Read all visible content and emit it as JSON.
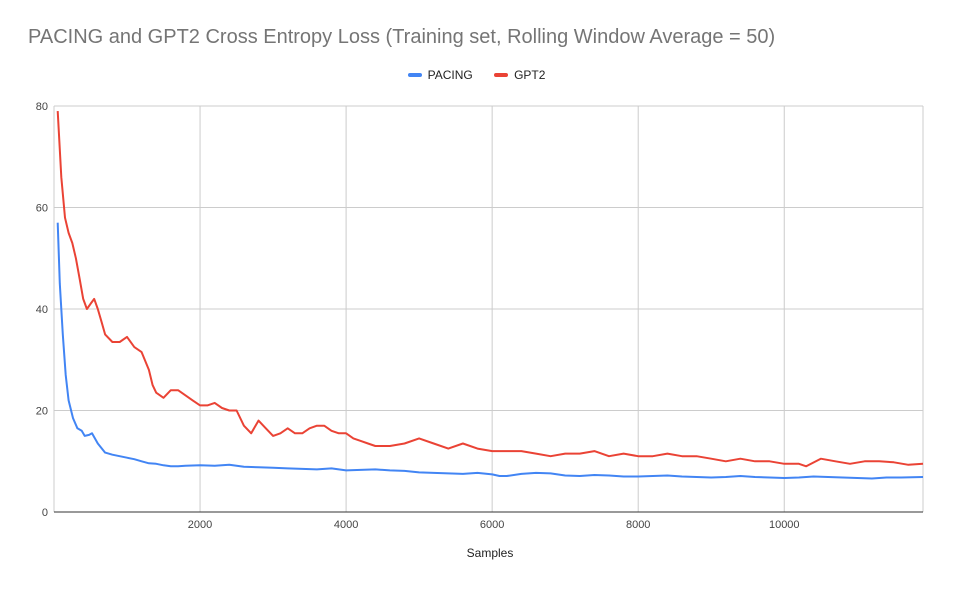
{
  "chart_data": {
    "type": "line",
    "title": "PACING and GPT2 Cross Entropy Loss (Training set, Rolling Window Average = 50)",
    "xlabel": "Samples",
    "ylabel": "",
    "xlim": [
      0,
      11900
    ],
    "ylim": [
      0,
      80
    ],
    "xticks": [
      2000,
      4000,
      6000,
      8000,
      10000
    ],
    "xtick_labels": [
      "2000",
      "4000",
      "6000",
      "8000",
      "10000"
    ],
    "yticks": [
      0,
      20,
      40,
      60,
      80
    ],
    "ytick_labels": [
      "0",
      "20",
      "40",
      "60",
      "80"
    ],
    "grid": true,
    "legend_position": "top",
    "series": [
      {
        "name": "PACING",
        "color": "#4285f4",
        "points": [
          [
            50,
            57
          ],
          [
            80,
            45
          ],
          [
            120,
            35
          ],
          [
            160,
            27
          ],
          [
            200,
            22
          ],
          [
            260,
            18.5
          ],
          [
            320,
            16.5
          ],
          [
            380,
            16
          ],
          [
            420,
            15
          ],
          [
            480,
            15.2
          ],
          [
            520,
            15.5
          ],
          [
            600,
            13.5
          ],
          [
            700,
            11.7
          ],
          [
            800,
            11.3
          ],
          [
            900,
            11
          ],
          [
            1000,
            10.7
          ],
          [
            1100,
            10.4
          ],
          [
            1200,
            10
          ],
          [
            1300,
            9.6
          ],
          [
            1400,
            9.5
          ],
          [
            1500,
            9.2
          ],
          [
            1600,
            9
          ],
          [
            1700,
            9
          ],
          [
            1800,
            9.1
          ],
          [
            2000,
            9.2
          ],
          [
            2200,
            9.1
          ],
          [
            2400,
            9.3
          ],
          [
            2600,
            8.9
          ],
          [
            2800,
            8.8
          ],
          [
            3000,
            8.7
          ],
          [
            3200,
            8.6
          ],
          [
            3400,
            8.5
          ],
          [
            3600,
            8.4
          ],
          [
            3800,
            8.6
          ],
          [
            4000,
            8.2
          ],
          [
            4200,
            8.3
          ],
          [
            4400,
            8.4
          ],
          [
            4600,
            8.2
          ],
          [
            4800,
            8.1
          ],
          [
            5000,
            7.8
          ],
          [
            5200,
            7.7
          ],
          [
            5400,
            7.6
          ],
          [
            5600,
            7.5
          ],
          [
            5800,
            7.7
          ],
          [
            6000,
            7.4
          ],
          [
            6100,
            7.1
          ],
          [
            6200,
            7.1
          ],
          [
            6400,
            7.5
          ],
          [
            6600,
            7.7
          ],
          [
            6800,
            7.6
          ],
          [
            7000,
            7.2
          ],
          [
            7200,
            7.1
          ],
          [
            7400,
            7.3
          ],
          [
            7600,
            7.2
          ],
          [
            7800,
            7
          ],
          [
            8000,
            7
          ],
          [
            8200,
            7.1
          ],
          [
            8400,
            7.2
          ],
          [
            8600,
            7
          ],
          [
            8800,
            6.9
          ],
          [
            9000,
            6.8
          ],
          [
            9200,
            6.9
          ],
          [
            9400,
            7.1
          ],
          [
            9600,
            6.9
          ],
          [
            9800,
            6.8
          ],
          [
            10000,
            6.7
          ],
          [
            10200,
            6.8
          ],
          [
            10400,
            7
          ],
          [
            10600,
            6.9
          ],
          [
            10800,
            6.8
          ],
          [
            11000,
            6.7
          ],
          [
            11200,
            6.6
          ],
          [
            11400,
            6.8
          ],
          [
            11600,
            6.8
          ],
          [
            11900,
            6.9
          ]
        ]
      },
      {
        "name": "GPT2",
        "color": "#ea4335",
        "points": [
          [
            50,
            79
          ],
          [
            100,
            66
          ],
          [
            150,
            58
          ],
          [
            200,
            55
          ],
          [
            250,
            53
          ],
          [
            300,
            50
          ],
          [
            350,
            46
          ],
          [
            400,
            42
          ],
          [
            450,
            40
          ],
          [
            500,
            41
          ],
          [
            550,
            42
          ],
          [
            600,
            40
          ],
          [
            650,
            37.5
          ],
          [
            700,
            35
          ],
          [
            800,
            33.5
          ],
          [
            900,
            33.5
          ],
          [
            1000,
            34.5
          ],
          [
            1100,
            32.5
          ],
          [
            1200,
            31.5
          ],
          [
            1300,
            28
          ],
          [
            1350,
            25
          ],
          [
            1400,
            23.5
          ],
          [
            1500,
            22.5
          ],
          [
            1600,
            24
          ],
          [
            1700,
            24
          ],
          [
            1800,
            23
          ],
          [
            1900,
            22
          ],
          [
            2000,
            21
          ],
          [
            2100,
            21
          ],
          [
            2200,
            21.5
          ],
          [
            2300,
            20.5
          ],
          [
            2400,
            20
          ],
          [
            2500,
            20
          ],
          [
            2600,
            17
          ],
          [
            2700,
            15.5
          ],
          [
            2800,
            18
          ],
          [
            2900,
            16.5
          ],
          [
            3000,
            15
          ],
          [
            3100,
            15.5
          ],
          [
            3200,
            16.5
          ],
          [
            3300,
            15.5
          ],
          [
            3400,
            15.5
          ],
          [
            3500,
            16.5
          ],
          [
            3600,
            17
          ],
          [
            3700,
            17
          ],
          [
            3800,
            16
          ],
          [
            3900,
            15.5
          ],
          [
            4000,
            15.5
          ],
          [
            4100,
            14.5
          ],
          [
            4200,
            14
          ],
          [
            4300,
            13.5
          ],
          [
            4400,
            13
          ],
          [
            4600,
            13
          ],
          [
            4800,
            13.5
          ],
          [
            5000,
            14.5
          ],
          [
            5200,
            13.5
          ],
          [
            5400,
            12.5
          ],
          [
            5600,
            13.5
          ],
          [
            5800,
            12.5
          ],
          [
            6000,
            12
          ],
          [
            6200,
            12
          ],
          [
            6400,
            12
          ],
          [
            6600,
            11.5
          ],
          [
            6800,
            11
          ],
          [
            7000,
            11.5
          ],
          [
            7200,
            11.5
          ],
          [
            7400,
            12
          ],
          [
            7600,
            11
          ],
          [
            7800,
            11.5
          ],
          [
            8000,
            11
          ],
          [
            8200,
            11
          ],
          [
            8400,
            11.5
          ],
          [
            8600,
            11
          ],
          [
            8800,
            11
          ],
          [
            9000,
            10.5
          ],
          [
            9200,
            10
          ],
          [
            9400,
            10.5
          ],
          [
            9600,
            10
          ],
          [
            9800,
            10
          ],
          [
            10000,
            9.5
          ],
          [
            10200,
            9.5
          ],
          [
            10300,
            9
          ],
          [
            10500,
            10.5
          ],
          [
            10700,
            10
          ],
          [
            10900,
            9.5
          ],
          [
            11100,
            10
          ],
          [
            11300,
            10
          ],
          [
            11500,
            9.8
          ],
          [
            11700,
            9.3
          ],
          [
            11900,
            9.5
          ]
        ]
      }
    ]
  }
}
